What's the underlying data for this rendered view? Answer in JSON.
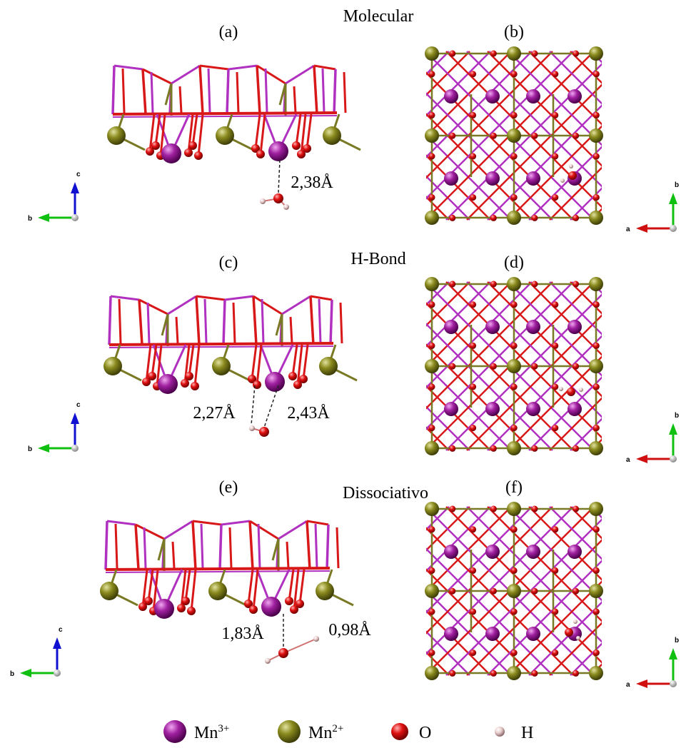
{
  "rows": [
    {
      "title": "Molecular",
      "side": {
        "label": "(a)",
        "distances": [
          "2,38Å"
        ],
        "axes": [
          "c",
          "b"
        ]
      },
      "top": {
        "label": "(b)",
        "axes": [
          "b",
          "a"
        ]
      }
    },
    {
      "title": "H-Bond",
      "side": {
        "label": "(c)",
        "distances": [
          "2,27Å",
          "2,43Å"
        ],
        "axes": [
          "c",
          "b"
        ]
      },
      "top": {
        "label": "(d)",
        "axes": [
          "b",
          "a"
        ]
      }
    },
    {
      "title": "Dissociativo",
      "side": {
        "label": "(e)",
        "distances": [
          "1,83Å",
          "0,98Å"
        ],
        "axes": [
          "c",
          "b"
        ]
      },
      "top": {
        "label": "(f)",
        "axes": [
          "b",
          "a"
        ]
      }
    }
  ],
  "legend": [
    {
      "symbol": "Mn",
      "charge": "3+"
    },
    {
      "symbol": "Mn",
      "charge": "2+"
    },
    {
      "symbol": "O"
    },
    {
      "symbol": "H"
    }
  ]
}
